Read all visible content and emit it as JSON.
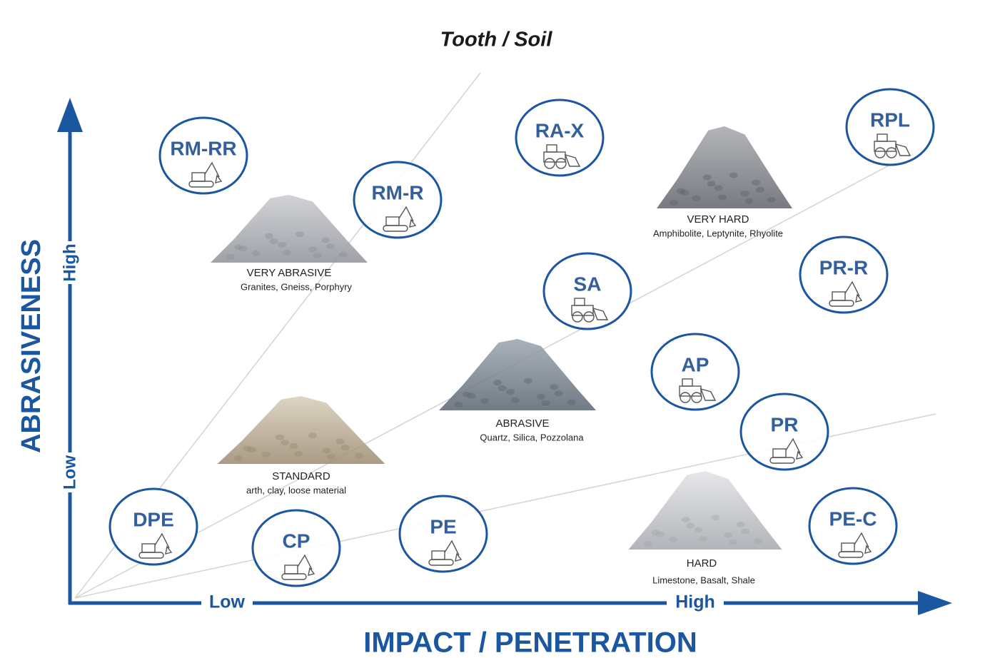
{
  "title": "Tooth / Soil",
  "y_axis": {
    "label": "ABRASIVENESS",
    "low": "Low",
    "high": "High"
  },
  "x_axis": {
    "label": "IMPACT / PENETRATION",
    "low": "Low",
    "high": "High"
  },
  "teeth": [
    {
      "code": "RM-RR"
    },
    {
      "code": "RM-R"
    },
    {
      "code": "RA-X"
    },
    {
      "code": "RPL"
    },
    {
      "code": "SA"
    },
    {
      "code": "PR-R"
    },
    {
      "code": "AP"
    },
    {
      "code": "PR"
    },
    {
      "code": "DPE"
    },
    {
      "code": "CP"
    },
    {
      "code": "PE"
    },
    {
      "code": "PE-C"
    }
  ],
  "soils": [
    {
      "name": "VERY ABRASIVE",
      "examples": "Granites, Gneiss, Porphyry"
    },
    {
      "name": "VERY HARD",
      "examples": "Amphibolite, Leptynite, Rhyolite"
    },
    {
      "name": "ABRASIVE",
      "examples": "Quartz, Silica, Pozzolana"
    },
    {
      "name": "STANDARD",
      "examples": "arth, clay, loose material"
    },
    {
      "name": "HARD",
      "examples": "Limestone, Basalt, Shale"
    }
  ]
}
